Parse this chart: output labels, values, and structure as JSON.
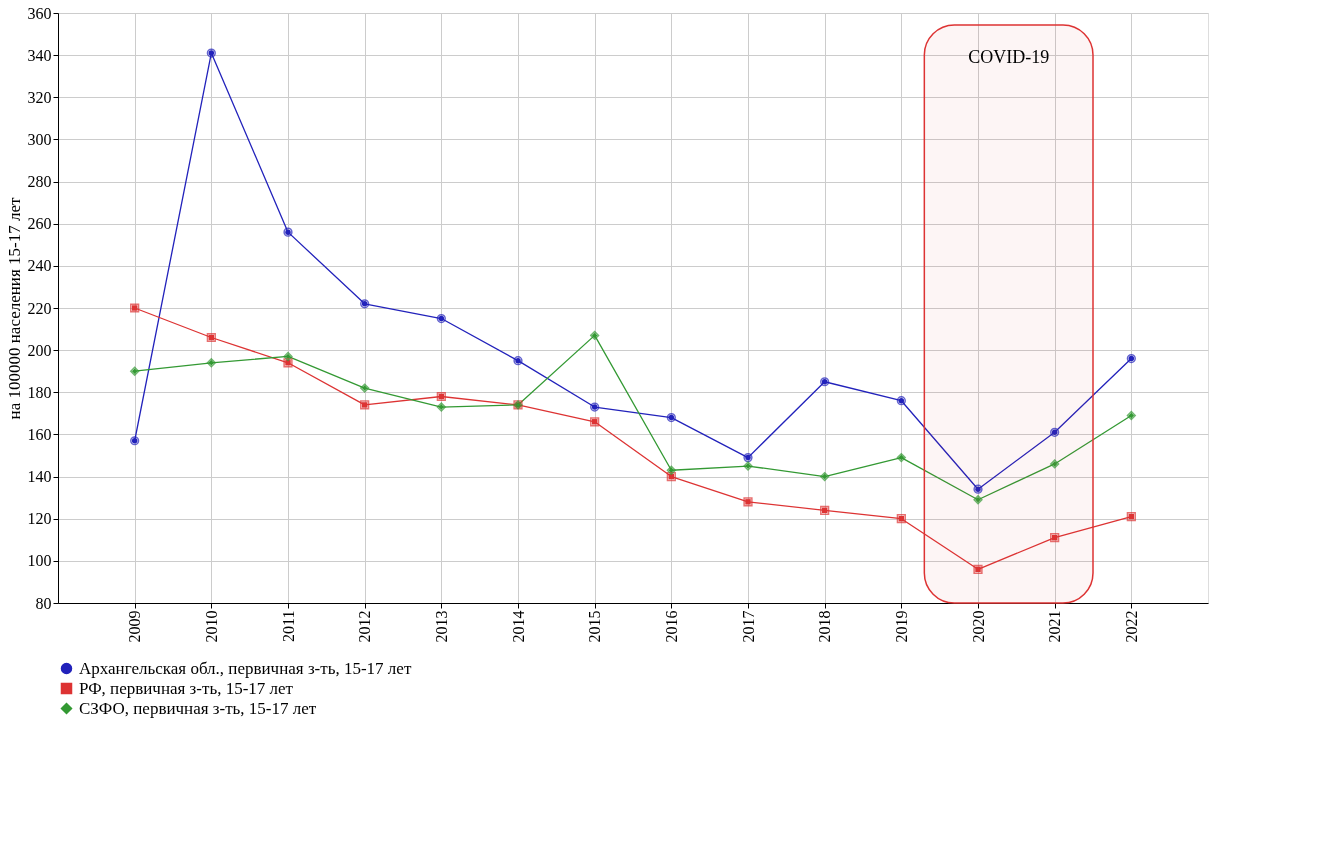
{
  "chart_data": {
    "type": "line",
    "ylabel": "на 100000 населения 15-17 лет",
    "x": [
      2009,
      2010,
      2011,
      2012,
      2013,
      2014,
      2015,
      2016,
      2017,
      2018,
      2019,
      2020,
      2021,
      2022
    ],
    "xlim": [
      2008,
      2023
    ],
    "xticks": [
      2009,
      2010,
      2011,
      2012,
      2013,
      2014,
      2015,
      2016,
      2017,
      2018,
      2019,
      2020,
      2021,
      2022
    ],
    "ylim": [
      80,
      360
    ],
    "yticks": [
      80,
      100,
      120,
      140,
      160,
      180,
      200,
      220,
      240,
      260,
      280,
      300,
      320,
      340,
      360
    ],
    "grid": true,
    "legend": "bottom",
    "line_style": "solid",
    "series": [
      {
        "name": "Архангельская обл., первичная з-ть, 15-17 лет",
        "color": "#2222bb",
        "marker": "circle",
        "values": [
          157,
          341,
          256,
          222,
          215,
          195,
          173,
          168,
          149,
          185,
          176,
          134,
          161,
          196
        ]
      },
      {
        "name": "РФ, первичная з-ть, 15-17 лет",
        "color": "#dd3333",
        "marker": "square",
        "values": [
          220,
          206,
          194,
          174,
          178,
          174,
          166,
          140,
          128,
          124,
          120,
          96,
          111,
          121
        ]
      },
      {
        "name": "СЗФО, первичная з-ть, 15-17 лет",
        "color": "#339933",
        "marker": "diamond",
        "values": [
          190,
          194,
          197,
          182,
          173,
          174,
          207,
          143,
          145,
          140,
          149,
          129,
          146,
          169
        ]
      }
    ],
    "bands": [
      {
        "axis": "x",
        "from": 2019.3,
        "to": 2021.5,
        "label": "COVID-19",
        "color": "#dd3333"
      }
    ]
  }
}
